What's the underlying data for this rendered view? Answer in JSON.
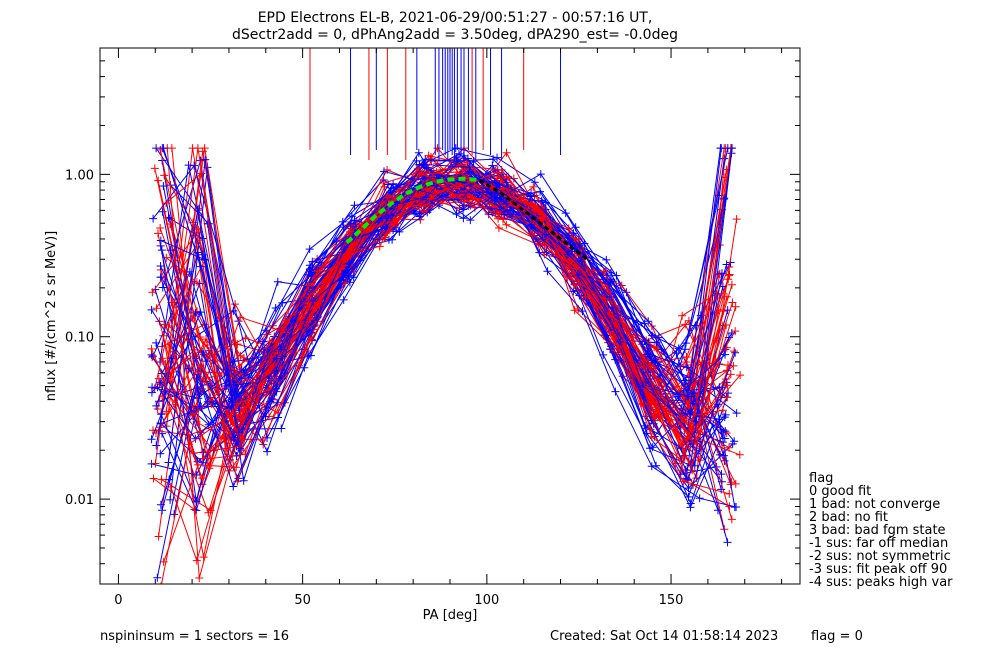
{
  "chart_data": {
    "type": "line",
    "title_line1": "EPD Electrons EL-B, 2021-06-29/00:51:27 - 00:57:16 UT,",
    "title_line2": "dSectr2add = 0, dPhAng2add = 3.50deg, dPA290_est=  -0.0deg",
    "xlabel": "PA [deg]",
    "ylabel": "nflux [#/(cm^2 s sr MeV)]",
    "xlim": [
      -5,
      185
    ],
    "ylim": [
      0.003,
      6
    ],
    "y_scale": "log",
    "x_ticks": [
      0,
      50,
      100,
      150
    ],
    "x_tick_labels": [
      "0",
      "50",
      "100",
      "150"
    ],
    "y_ticks": [
      0.01,
      0.1,
      1.0
    ],
    "y_tick_labels": [
      "0.01",
      "0.10",
      "1.00"
    ],
    "series_colors": {
      "red": "#ff0000",
      "blue": "#0000ff",
      "fit_green": "#00ee00",
      "fit_black": "#000000"
    },
    "fit_green": {
      "x": [
        62,
        66,
        70,
        74,
        78,
        82,
        86,
        90,
        94,
        98
      ],
      "y": [
        0.38,
        0.46,
        0.56,
        0.66,
        0.76,
        0.84,
        0.9,
        0.93,
        0.94,
        0.92
      ]
    },
    "fit_black": {
      "x": [
        98,
        104,
        110,
        116,
        122,
        128
      ],
      "y": [
        0.92,
        0.76,
        0.6,
        0.47,
        0.37,
        0.29
      ]
    },
    "legend": {
      "title": "flag",
      "items": [
        " 0 good fit",
        " 1 bad: not converge",
        " 2 bad: no fit",
        " 3 bad: bad fgm state",
        "-1 sus: far off median",
        "-2 sus: not symmetric",
        "-3 sus: fit peak off 90",
        "-4 sus: peaks high var"
      ]
    }
  },
  "footer": {
    "left": "nspininsum =  1  sectors = 16",
    "created": "Created: Sat Oct 14 01:58:14 2023",
    "flag": "flag = 0"
  }
}
